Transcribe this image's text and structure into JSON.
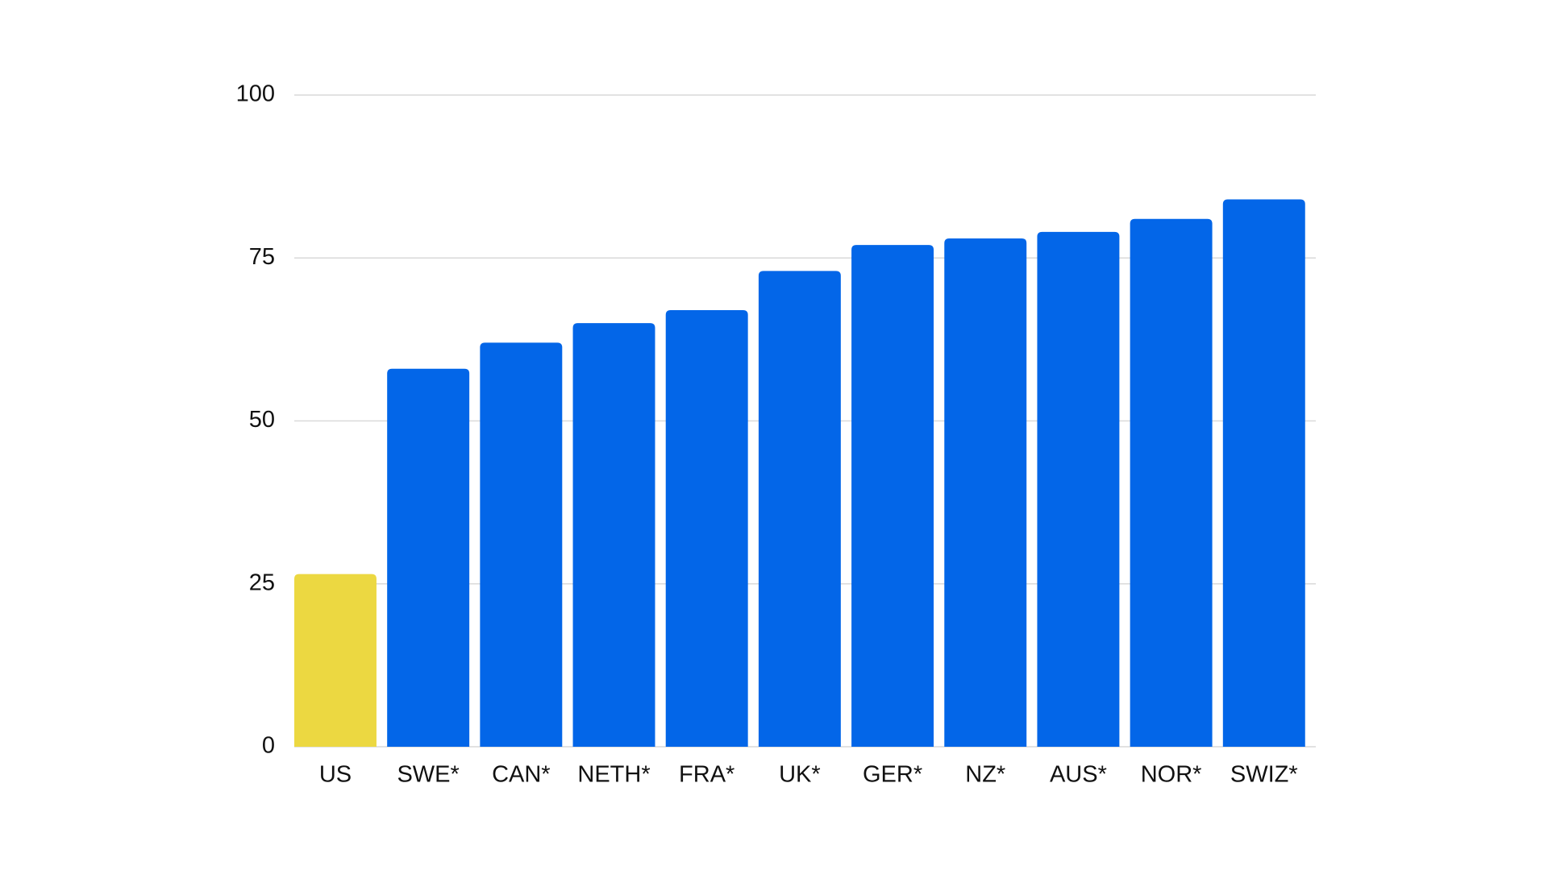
{
  "chart_data": {
    "type": "bar",
    "categories": [
      "US",
      "SWE*",
      "CAN*",
      "NETH*",
      "FRA*",
      "UK*",
      "GER*",
      "NZ*",
      "AUS*",
      "NOR*",
      "SWIZ*"
    ],
    "values": [
      26.5,
      58,
      62,
      65,
      67,
      73,
      77,
      78,
      79,
      81,
      84
    ],
    "colors": [
      "#ecd841",
      "#0366e8",
      "#0366e8",
      "#0366e8",
      "#0366e8",
      "#0366e8",
      "#0366e8",
      "#0366e8",
      "#0366e8",
      "#0366e8",
      "#0366e8"
    ],
    "ylim": [
      0,
      100
    ],
    "yticks": [
      0,
      25,
      50,
      75,
      100
    ],
    "grid": true
  }
}
